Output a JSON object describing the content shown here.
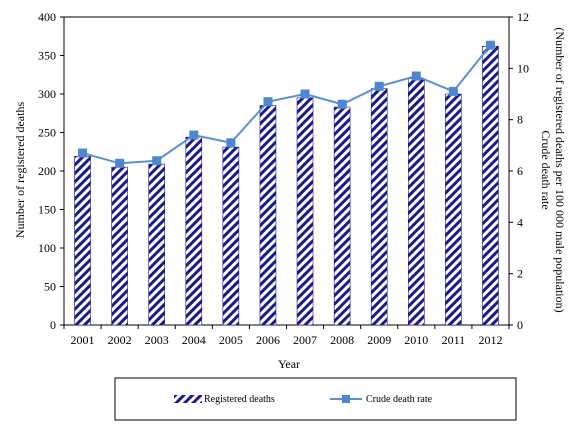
{
  "chart_data": {
    "type": "bar",
    "categories": [
      "2001",
      "2002",
      "2003",
      "2004",
      "2005",
      "2006",
      "2007",
      "2008",
      "2009",
      "2010",
      "2011",
      "2012"
    ],
    "series": [
      {
        "name": "Registered deaths",
        "type": "bar",
        "axis": "left",
        "values": [
          219,
          205,
          209,
          244,
          231,
          285,
          295,
          283,
          307,
          320,
          300,
          362
        ]
      },
      {
        "name": "Crude death rate",
        "type": "line",
        "axis": "right",
        "values": [
          6.7,
          6.3,
          6.4,
          7.4,
          7.1,
          8.7,
          9.0,
          8.6,
          9.3,
          9.7,
          9.1,
          10.9
        ]
      }
    ],
    "xlabel": "Year",
    "ylabel": "Number of registered deaths",
    "y2label_line1": "Crude death rate",
    "y2label_line2": "(Number of registered deaths per 100 000 male population)",
    "ylim": [
      0,
      400
    ],
    "yticks": [
      0,
      50,
      100,
      150,
      200,
      250,
      300,
      350,
      400
    ],
    "y2lim": [
      0,
      12
    ],
    "y2ticks": [
      0,
      2,
      4,
      6,
      8,
      10,
      12
    ],
    "grid": false,
    "legend_position": "bottom",
    "colors": {
      "bar_stripe": "#1a1a8c",
      "line": "#5b8fd6",
      "marker": "#4f86d0"
    }
  }
}
